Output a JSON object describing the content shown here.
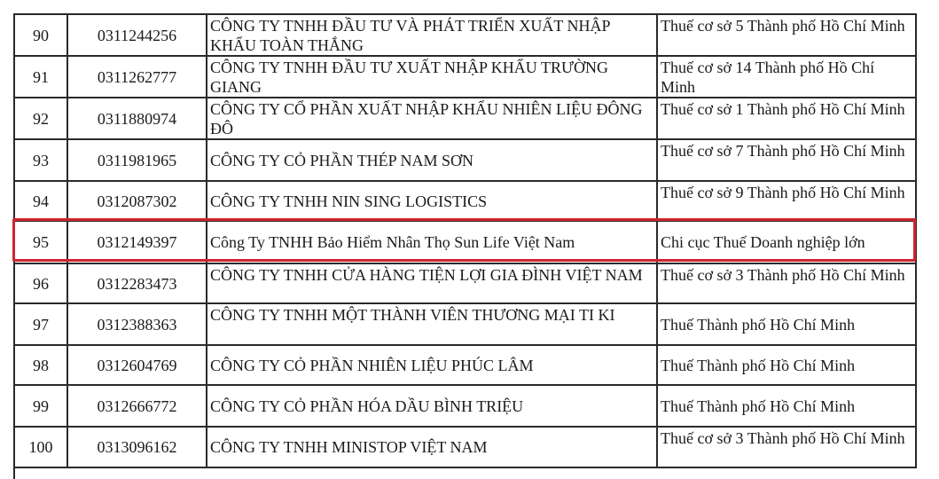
{
  "table": {
    "rows": [
      {
        "stt": "90",
        "mst": "0311244256",
        "name": "CÔNG TY TNHH ĐẦU TƯ VÀ PHÁT TRIỂN XUẤT NHẬP KHẨU TOÀN THẮNG",
        "cqt": "Thuế cơ sở 5 Thành phố Hồ Chí Minh"
      },
      {
        "stt": "91",
        "mst": "0311262777",
        "name": "CÔNG TY TNHH ĐẦU TƯ XUẤT NHẬP KHẨU TRƯỜNG GIANG",
        "cqt": "Thuế cơ sở 14 Thành phố Hồ Chí Minh"
      },
      {
        "stt": "92",
        "mst": "0311880974",
        "name": "CÔNG TY CỔ PHẦN XUẤT NHẬP KHẨU NHIÊN LIỆU ĐÔNG ĐÔ",
        "cqt": "Thuế cơ sở 1 Thành phố Hồ Chí Minh"
      },
      {
        "stt": "93",
        "mst": "0311981965",
        "name": "CÔNG TY CỎ PHẦN THÉP NAM SƠN",
        "cqt": "Thuế cơ sở 7 Thành phố Hồ Chí Minh"
      },
      {
        "stt": "94",
        "mst": "0312087302",
        "name": "CÔNG TY TNHH NIN SING LOGISTICS",
        "cqt": "Thuế cơ sở 9 Thành phố Hồ Chí Minh"
      },
      {
        "stt": "95",
        "mst": "0312149397",
        "name": "Công Ty TNHH Bảo Hiểm Nhân Thọ Sun Life Việt Nam",
        "cqt": "Chi cục Thuế Doanh nghiệp lớn",
        "highlighted": true
      },
      {
        "stt": "96",
        "mst": "0312283473",
        "name": "CÔNG TY TNHH CỬA HÀNG TIỆN LỢI GIA ĐÌNH VIỆT NAM",
        "cqt": "Thuế cơ sở 3 Thành phố Hồ Chí Minh"
      },
      {
        "stt": "97",
        "mst": "0312388363",
        "name": "CÔNG TY TNHH MỘT THÀNH VIÊN THƯƠNG MẠI TI KI",
        "cqt": "Thuế Thành phố Hồ Chí Minh"
      },
      {
        "stt": "98",
        "mst": "0312604769",
        "name": "CÔNG TY CỎ PHẦN  NHIÊN LIỆU PHÚC LÂM",
        "cqt": "Thuế Thành phố Hồ Chí Minh"
      },
      {
        "stt": "99",
        "mst": "0312666772",
        "name": "CÔNG TY CỎ PHẦN HÓA DẦU BÌNH TRIỆU",
        "cqt": "Thuế Thành phố Hồ Chí Minh"
      },
      {
        "stt": "100",
        "mst": "0313096162",
        "name": "CÔNG TY TNHH MINISTOP VIỆT NAM",
        "cqt": "Thuế cơ sở 3 Thành phố Hồ Chí Minh"
      }
    ]
  },
  "colors": {
    "highlight_border": "#d02430",
    "grid": "#2a2a2a"
  }
}
